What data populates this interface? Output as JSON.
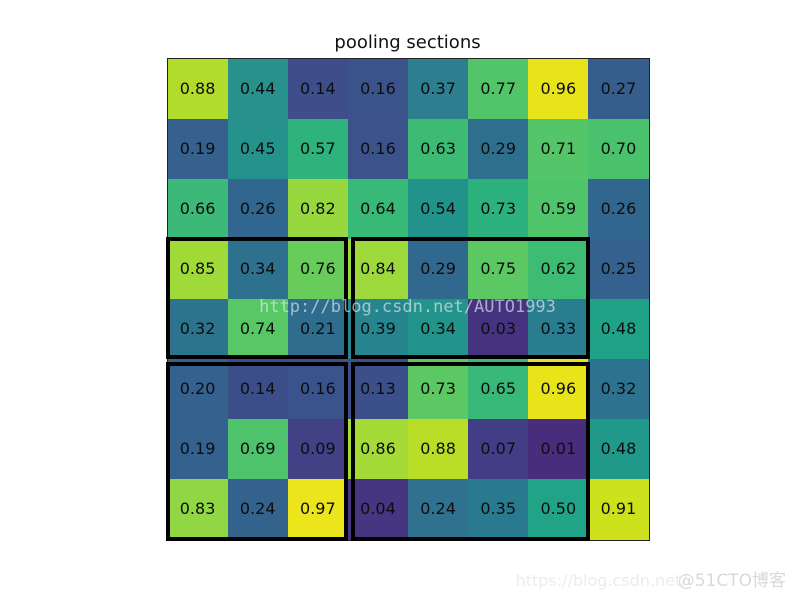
{
  "title": "pooling sections",
  "watermark_center": "http://blog.csdn.net/AUTO1993",
  "watermark_bottom": {
    "url": "https://blog.csdn.net/",
    "badge": "@51CTO博客"
  },
  "chart_data": {
    "type": "heatmap",
    "title": "pooling sections",
    "rows": 8,
    "cols": 8,
    "colormap": "viridis",
    "grid_on": false,
    "axes_ticks": "none",
    "values": [
      [
        "0.88",
        "0.44",
        "0.14",
        "0.16",
        "0.37",
        "0.77",
        "0.96",
        "0.27"
      ],
      [
        "0.19",
        "0.45",
        "0.57",
        "0.16",
        "0.63",
        "0.29",
        "0.71",
        "0.70"
      ],
      [
        "0.66",
        "0.26",
        "0.82",
        "0.64",
        "0.54",
        "0.73",
        "0.59",
        "0.26"
      ],
      [
        "0.85",
        "0.34",
        "0.76",
        "0.84",
        "0.29",
        "0.75",
        "0.62",
        "0.25"
      ],
      [
        "0.32",
        "0.74",
        "0.21",
        "0.39",
        "0.34",
        "0.03",
        "0.33",
        "0.48"
      ],
      [
        "0.20",
        "0.14",
        "0.16",
        "0.13",
        "0.73",
        "0.65",
        "0.96",
        "0.32"
      ],
      [
        "0.19",
        "0.69",
        "0.09",
        "0.86",
        "0.88",
        "0.07",
        "0.01",
        "0.48"
      ],
      [
        "0.83",
        "0.24",
        "0.97",
        "0.04",
        "0.24",
        "0.35",
        "0.50",
        "0.91"
      ]
    ],
    "cell_colors": [
      [
        "#b2dc2c",
        "#28918b",
        "#3d4e8a",
        "#3b538b",
        "#2d7e8e",
        "#52c569",
        "#e8e419",
        "#355e8d"
      ],
      [
        "#36618e",
        "#25938b",
        "#2eb37c",
        "#3b528b",
        "#3dbb74",
        "#2e6f8e",
        "#54c568",
        "#4ac16d"
      ],
      [
        "#3cb878",
        "#31668e",
        "#97d83e",
        "#38b977",
        "#21938b",
        "#2db27d",
        "#50c46a",
        "#31668e"
      ],
      [
        "#a0da39",
        "#2d718e",
        "#68cc5b",
        "#9dd93b",
        "#31688e",
        "#5bc863",
        "#3fbc73",
        "#34618d"
      ],
      [
        "#2c738e",
        "#58c765",
        "#2e6d8e",
        "#26858e",
        "#23948b",
        "#46337f",
        "#2a7d8e",
        "#1fa286"
      ],
      [
        "#35618e",
        "#3c4e8a",
        "#3a538c",
        "#3b508b",
        "#5bc863",
        "#38b977",
        "#e8e419",
        "#2d728e"
      ],
      [
        "#34618d",
        "#4ec36c",
        "#424186",
        "#a5db36",
        "#b9de28",
        "#413e85",
        "#472d7b",
        "#21998a"
      ],
      [
        "#90d743",
        "#33628d",
        "#ece51b",
        "#463681",
        "#2f718e",
        "#297a8e",
        "#20a386",
        "#cde11d"
      ]
    ],
    "text_color": "#0d0d0d",
    "box_color": "#000000",
    "pooling_boxes": [
      {
        "row_start": 3,
        "row_end": 5,
        "col_start": 0,
        "col_end": 3
      },
      {
        "row_start": 3,
        "row_end": 5,
        "col_start": 3,
        "col_end": 7
      },
      {
        "row_start": 5,
        "row_end": 8,
        "col_start": 0,
        "col_end": 3
      },
      {
        "row_start": 5,
        "row_end": 8,
        "col_start": 3,
        "col_end": 7
      }
    ]
  }
}
